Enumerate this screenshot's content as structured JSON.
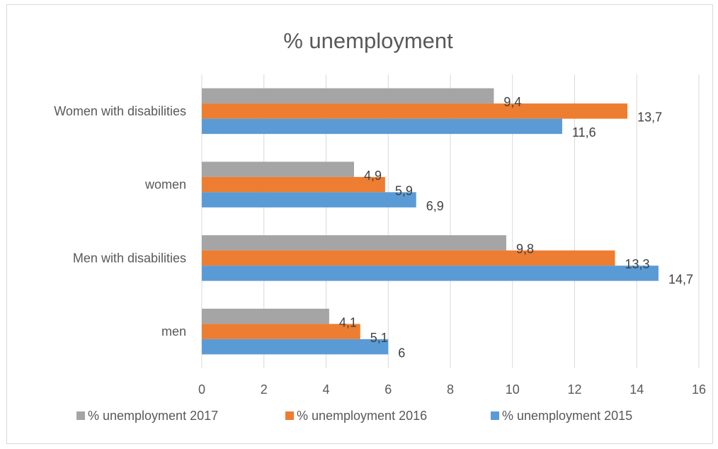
{
  "chart_data": {
    "type": "bar",
    "orientation": "horizontal",
    "title": "% unemployment",
    "categories": [
      "men",
      "Men with disabilities",
      "women",
      "Women with disabilities"
    ],
    "series": [
      {
        "name": "% unemployment 2017",
        "color": "#a5a5a5",
        "values": [
          4.1,
          9.8,
          4.9,
          9.4
        ],
        "labels": [
          "4,1",
          "9,8",
          "4,9",
          "9,4"
        ]
      },
      {
        "name": "% unemployment 2016",
        "color": "#ed7d31",
        "values": [
          5.1,
          13.3,
          5.9,
          13.7
        ],
        "labels": [
          "5,1",
          "13,3",
          "5,9",
          "13,7"
        ]
      },
      {
        "name": "% unemployment 2015",
        "color": "#5b9bd5",
        "values": [
          6,
          14.7,
          6.9,
          11.6
        ],
        "labels": [
          "6",
          "14,7",
          "6,9",
          "11,6"
        ]
      }
    ],
    "xlim": [
      0,
      16
    ],
    "xticks": [
      "0",
      "2",
      "4",
      "6",
      "8",
      "10",
      "12",
      "14",
      "16"
    ],
    "grid": true,
    "legend_position": "bottom"
  },
  "colors": {
    "gridline": "#d9d9d9",
    "text": "#595959"
  }
}
